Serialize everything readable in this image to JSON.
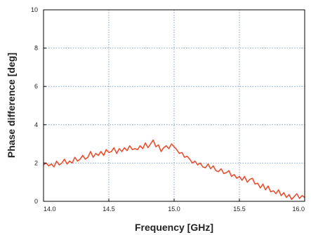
{
  "chart_data": {
    "type": "line",
    "title": "",
    "xlabel": "Frequency [GHz]",
    "ylabel": "Phase difference [deg]",
    "xlim": [
      14.0,
      16.0
    ],
    "ylim": [
      0,
      10
    ],
    "xticks": [
      14.0,
      14.5,
      15.0,
      15.5,
      16.0
    ],
    "xtick_labels": [
      "14.0",
      "14.5",
      "15.0",
      "15.5",
      "16.0"
    ],
    "yticks": [
      0,
      2,
      4,
      6,
      8,
      10
    ],
    "ytick_labels": [
      "0",
      "2",
      "4",
      "6",
      "8",
      "10"
    ],
    "grid": true,
    "series_color": "#e8502f",
    "series": [
      {
        "x": [
          14.0,
          14.02,
          14.04,
          14.06,
          14.08,
          14.1,
          14.12,
          14.14,
          14.16,
          14.18,
          14.2,
          14.22,
          14.24,
          14.26,
          14.28,
          14.3,
          14.32,
          14.34,
          14.36,
          14.38,
          14.4,
          14.42,
          14.44,
          14.46,
          14.48,
          14.5,
          14.52,
          14.54,
          14.56,
          14.58,
          14.6,
          14.62,
          14.64,
          14.66,
          14.68,
          14.7,
          14.72,
          14.74,
          14.76,
          14.78,
          14.8,
          14.82,
          14.84,
          14.86,
          14.88,
          14.9,
          14.92,
          14.94,
          14.96,
          14.98,
          15.0,
          15.02,
          15.04,
          15.06,
          15.08,
          15.1,
          15.12,
          15.14,
          15.16,
          15.18,
          15.2,
          15.22,
          15.24,
          15.26,
          15.28,
          15.3,
          15.32,
          15.34,
          15.36,
          15.38,
          15.4,
          15.42,
          15.44,
          15.46,
          15.48,
          15.5,
          15.52,
          15.54,
          15.56,
          15.58,
          15.6,
          15.62,
          15.64,
          15.66,
          15.68,
          15.7,
          15.72,
          15.74,
          15.76,
          15.78,
          15.8,
          15.82,
          15.84,
          15.86,
          15.88,
          15.9,
          15.92,
          15.94,
          15.96,
          15.98,
          16.0
        ],
        "y": [
          1.9,
          2.0,
          1.85,
          1.95,
          1.8,
          2.1,
          1.9,
          2.0,
          2.2,
          1.95,
          2.1,
          2.0,
          2.3,
          2.1,
          2.2,
          2.4,
          2.2,
          2.3,
          2.6,
          2.3,
          2.5,
          2.4,
          2.6,
          2.4,
          2.7,
          2.55,
          2.6,
          2.8,
          2.5,
          2.75,
          2.6,
          2.8,
          2.65,
          2.9,
          2.7,
          2.75,
          2.7,
          2.9,
          2.75,
          3.05,
          2.8,
          3.0,
          3.2,
          2.85,
          2.95,
          2.6,
          2.8,
          2.9,
          2.75,
          3.0,
          2.85,
          2.7,
          2.5,
          2.55,
          2.3,
          2.35,
          2.2,
          2.0,
          2.1,
          1.9,
          2.0,
          1.8,
          1.75,
          1.95,
          1.7,
          1.85,
          1.6,
          1.55,
          1.7,
          1.45,
          1.5,
          1.6,
          1.3,
          1.4,
          1.2,
          1.3,
          1.1,
          1.3,
          1.0,
          1.15,
          1.2,
          0.9,
          0.95,
          0.7,
          0.9,
          0.6,
          0.8,
          0.5,
          0.55,
          0.4,
          0.6,
          0.3,
          0.45,
          0.2,
          0.35,
          0.1,
          0.25,
          0.4,
          0.15,
          0.3,
          0.2
        ]
      }
    ]
  }
}
